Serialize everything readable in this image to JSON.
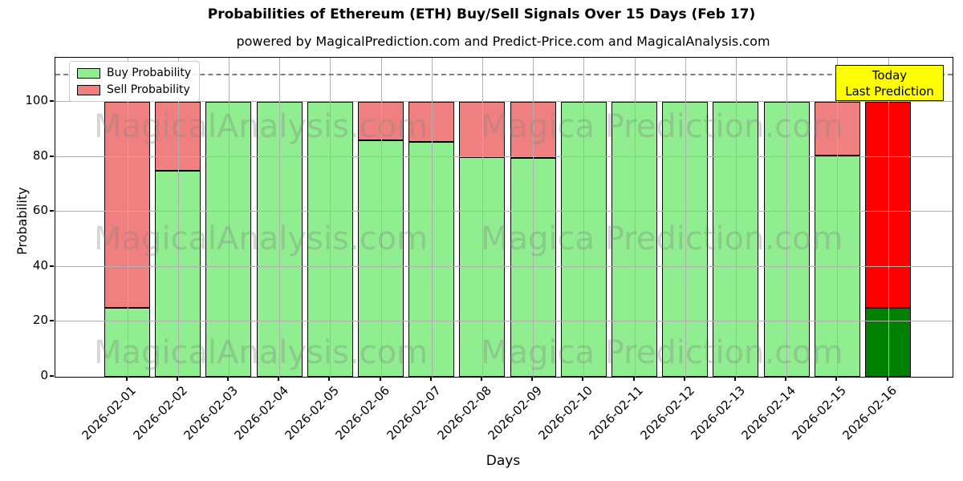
{
  "title": "Probabilities of Ethereum (ETH) Buy/Sell Signals Over 15 Days (Feb 17)",
  "subtitle": "powered by MagicalPrediction.com and Predict-Price.com and MagicalAnalysis.com",
  "annotation": {
    "line1": "Today",
    "line2": "Last Prediction"
  },
  "watermarks": {
    "left_text": "MagicalAnalysis.com",
    "right_text": "Magica Prediction.com"
  },
  "colors": {
    "buy": "#90ee90",
    "sell": "#f08080",
    "today_buy": "#008000",
    "today_sell": "#ff0000",
    "bar_edge": "#000000",
    "grid": "#b0b0b0",
    "dashed_line": "#7f7f7f",
    "annotation_bg": "#ffff00",
    "annotation_border": "#000000"
  },
  "chart_data": {
    "type": "bar",
    "stacked": true,
    "title": "Probabilities of Ethereum (ETH) Buy/Sell Signals Over 15 Days (Feb 17)",
    "xlabel": "Days",
    "ylabel": "Probability",
    "categories": [
      "2026-02-01",
      "2026-02-02",
      "2026-02-03",
      "2026-02-04",
      "2026-02-05",
      "2026-02-06",
      "2026-02-07",
      "2026-02-08",
      "2026-02-09",
      "2026-02-10",
      "2026-02-11",
      "2026-02-12",
      "2026-02-13",
      "2026-02-14",
      "2026-02-15",
      "2026-02-16"
    ],
    "series": [
      {
        "name": "Buy Probability",
        "values": [
          25,
          75,
          100,
          100,
          100,
          86,
          85.5,
          80,
          79.5,
          100,
          100,
          100,
          100,
          100,
          80.5,
          25
        ]
      },
      {
        "name": "Sell Probability",
        "values": [
          75,
          25,
          0,
          0,
          0,
          14,
          14.5,
          20,
          20.5,
          0,
          0,
          0,
          0,
          0,
          19.5,
          75
        ]
      }
    ],
    "yticks": [
      0,
      20,
      40,
      60,
      80,
      100
    ],
    "ylim": [
      0,
      116
    ],
    "dashed_line_y": 110,
    "today_index": 15,
    "legend_position": "upper left",
    "grid": true
  }
}
